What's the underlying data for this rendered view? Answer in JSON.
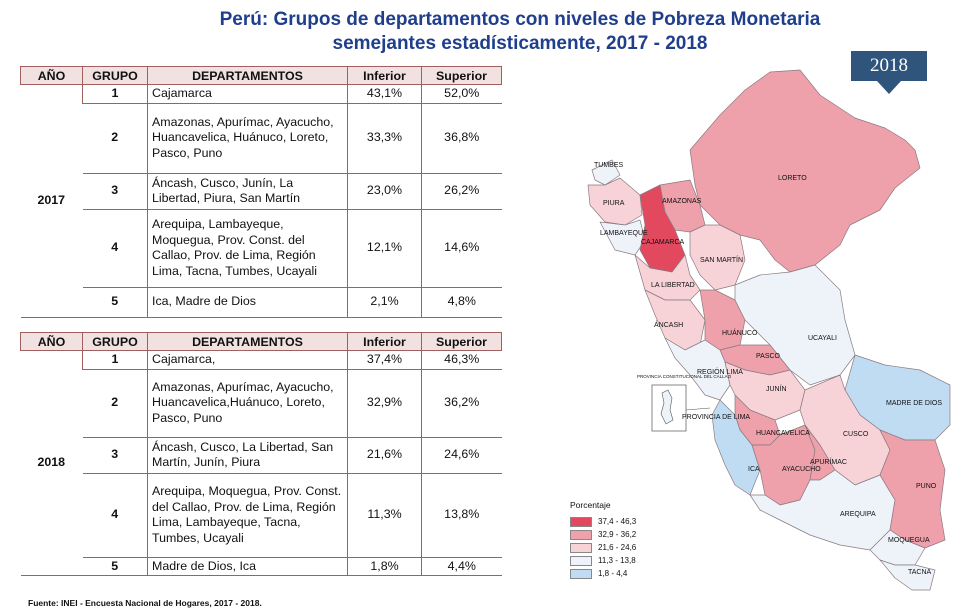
{
  "title": {
    "line1": "Perú: Grupos de departamentos con niveles de Pobreza Monetaria",
    "line2": "semejantes estadísticamente, 2017 - 2018"
  },
  "headers": {
    "year": "AÑO",
    "group": "GRUPO",
    "departments": "DEPARTAMENTOS",
    "lower": "Inferior",
    "upper": "Superior"
  },
  "table2017": {
    "year": "2017",
    "rows": [
      {
        "group": "1",
        "departments": "Cajamarca",
        "lower": "43,1%",
        "upper": "52,0%"
      },
      {
        "group": "2",
        "departments": "Amazonas, Apurímac, Ayacucho, Huancavelica, Huánuco, Loreto, Pasco, Puno",
        "lower": "33,3%",
        "upper": "36,8%"
      },
      {
        "group": "3",
        "departments": "Áncash, Cusco, Junín, La Libertad, Piura, San Martín",
        "lower": "23,0%",
        "upper": "26,2%"
      },
      {
        "group": "4",
        "departments": "Arequipa, Lambayeque, Moquegua, Prov. Const. del Callao, Prov. de Lima, Región Lima, Tacna, Tumbes, Ucayali",
        "lower": "12,1%",
        "upper": "14,6%"
      },
      {
        "group": "5",
        "departments": "Ica, Madre de Dios",
        "lower": "2,1%",
        "upper": "4,8%"
      }
    ]
  },
  "table2018": {
    "year": "2018",
    "rows": [
      {
        "group": "1",
        "departments": "Cajamarca,",
        "lower": "37,4%",
        "upper": "46,3%"
      },
      {
        "group": "2",
        "departments": "Amazonas, Apurímac, Ayacucho, Huancavelica,Huánuco, Loreto, Pasco, Puno",
        "lower": "32,9%",
        "upper": "36,2%"
      },
      {
        "group": "3",
        "departments": "Áncash, Cusco, La Libertad, San Martín, Junín, Piura",
        "lower": "21,6%",
        "upper": "24,6%"
      },
      {
        "group": "4",
        "departments": "Arequipa, Moquegua, Prov. Const. del Callao, Prov. de Lima, Región Lima, Lambayeque, Tacna, Tumbes, Ucayali",
        "lower": "11,3%",
        "upper": "13,8%"
      },
      {
        "group": "5",
        "departments": "Madre de Dios, Ica",
        "lower": "1,8%",
        "upper": "4,4%"
      }
    ]
  },
  "source": "Fuente: INEI - Encuesta Nacional de Hogares,  2017 - 2018.",
  "map": {
    "badge": "2018",
    "labels": {
      "tumbes": "TUMBES",
      "piura": "PIURA",
      "lambayeque": "LAMBAYEQUE",
      "cajamarca": "CAJAMARCA",
      "amazonas": "AMAZONAS",
      "loreto": "LORETO",
      "san_martin": "SAN MARTÍN",
      "la_libertad": "LA LIBERTAD",
      "ancash": "ÁNCASH",
      "huanuco": "HUÁNUCO",
      "ucayali": "UCAYALI",
      "pasco": "PASCO",
      "region_lima": "REGIÓN LIMA",
      "junin": "JUNÍN",
      "callao": "PROVINCIA CONSTITUCIONAL DEL CALLAO",
      "prov_lima": "PROVINCIA DE LIMA",
      "madre_de_dios": "MADRE DE DIOS",
      "huancavelica": "HUANCAVELICA",
      "cusco": "CUSCO",
      "ica": "ICA",
      "ayacucho": "AYACUCHO",
      "apurimac": "APURÍMAC",
      "puno": "PUNO",
      "arequipa": "AREQUIPA",
      "moquegua": "MOQUEGUA",
      "tacna": "TACNA"
    },
    "colors": {
      "g1": "#e2495f",
      "g2": "#eea0ab",
      "g3": "#f7d3d8",
      "g4": "#eef3fa",
      "g5": "#bfdcf3"
    }
  },
  "legend": {
    "title": "Porcentaje",
    "items": [
      {
        "label": "37,4 - 46,3",
        "color": "#e2495f"
      },
      {
        "label": "32,9 - 36,2",
        "color": "#eea0ab"
      },
      {
        "label": "21,6 - 24,6",
        "color": "#f7d3d8"
      },
      {
        "label": "11,3 - 13,8",
        "color": "#eef3fa"
      },
      {
        "label": "1,8 - 4,4",
        "color": "#bfdcf3"
      }
    ]
  }
}
